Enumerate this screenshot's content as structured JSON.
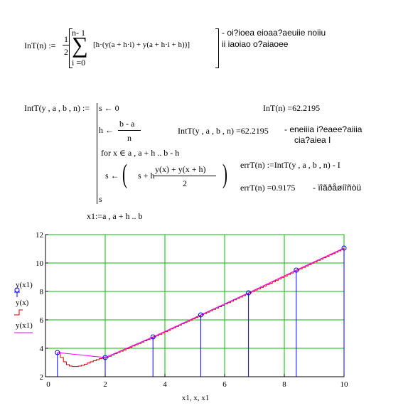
{
  "formula1": {
    "lhs": "InT(n) :=",
    "half_num": "1",
    "half_den": "2",
    "sum_upper": "n- 1",
    "sum_lower": "i =0",
    "sum_symbol": "∑",
    "body": "[h·(y(a + h·i) + y(a + h·i + h))]",
    "comment": [
      "- oi?ioea eioaa?aeuiie noiiu",
      "ii iaoiao o?aiaoee"
    ]
  },
  "formula2": {
    "lhs": "IntT(y , a , b , n) :=",
    "line1": "s ← 0",
    "line2_lhs": "h ←",
    "line2_num": "b - a",
    "line2_den": "n",
    "line3": "for  x ∈ a , a + h .. b - h",
    "line4_lhs": "s ←",
    "line4_a": "s + h·",
    "line4_num": "y(x) + y(x + h)",
    "line4_den": "2",
    "line5": "s"
  },
  "results": {
    "r1": "InT(n) =62.2195",
    "r2": "IntT(y , a , b , n) =62.2195",
    "r2_comment": [
      "- eneiiia i?eaee?aiiia",
      "cia?aiea I"
    ],
    "r3": "errT(n) :=IntT(y , a , b , n) -  I",
    "r4": "errT(n) =0.9175",
    "r4_comment": "- ïîãðåøíîñòü"
  },
  "range_def": "x1:=a , a + h .. b",
  "chart_data": {
    "type": "line",
    "xlabel": "x1, x, x1",
    "legend": [
      "y(x1)",
      "y(x)",
      "y(x1)"
    ],
    "xlim": [
      0,
      10
    ],
    "ylim": [
      2,
      12
    ],
    "x_ticks": [
      0,
      2,
      4,
      6,
      8,
      10
    ],
    "y_ticks": [
      2,
      4,
      6,
      8,
      10,
      12
    ],
    "grid": true,
    "colors": {
      "grid": "#00c000",
      "stems": "#0000ff",
      "curve": "#c00000",
      "trapezoid": "#ff00ff",
      "markers": "#0000ff"
    },
    "series": [
      {
        "kind": "markers",
        "x": [
          0.4,
          2.0,
          3.6,
          5.2,
          6.8,
          8.4,
          10.0
        ],
        "y": [
          3.7,
          3.35,
          4.8,
          6.35,
          7.9,
          9.5,
          11.05
        ]
      },
      {
        "kind": "curve",
        "x": [
          0.4,
          0.5,
          0.6,
          0.7,
          0.8,
          0.9,
          1.0,
          1.1,
          1.2,
          1.3,
          1.4,
          1.5,
          1.6,
          1.7,
          1.8,
          1.9,
          2.0,
          2.5,
          3.0,
          3.6,
          4.0,
          5.2,
          6.0,
          6.8,
          7.5,
          8.4,
          9.2,
          10.0
        ],
        "y": [
          3.7,
          3.35,
          3.05,
          2.85,
          2.75,
          2.72,
          2.72,
          2.75,
          2.8,
          2.88,
          2.96,
          3.05,
          3.13,
          3.2,
          3.27,
          3.32,
          3.35,
          3.8,
          4.25,
          4.8,
          5.18,
          6.35,
          7.12,
          7.9,
          8.58,
          9.5,
          10.28,
          11.05
        ]
      }
    ]
  }
}
